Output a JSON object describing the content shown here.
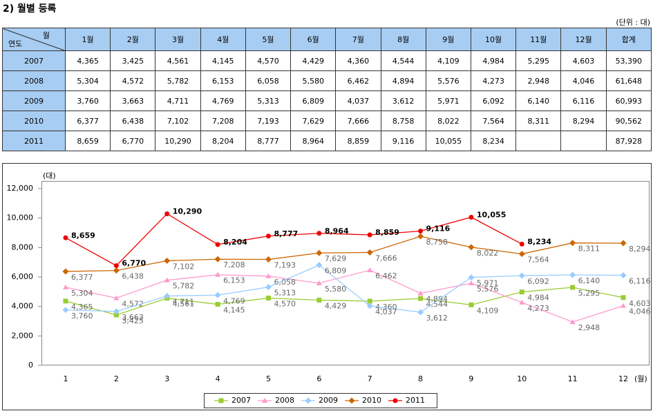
{
  "header": {
    "title": "2) 월별 등록",
    "unit": "(단위 : 대)"
  },
  "table": {
    "corner_top": "월",
    "corner_bottom": "연도",
    "columns": [
      "1월",
      "2월",
      "3월",
      "4월",
      "5월",
      "6월",
      "7월",
      "8월",
      "9월",
      "10월",
      "11월",
      "12월",
      "합계"
    ],
    "rows": [
      {
        "year": "2007",
        "cells": [
          "4,365",
          "3,425",
          "4,561",
          "4,145",
          "4,570",
          "4,429",
          "4,360",
          "4,544",
          "4,109",
          "4,984",
          "5,295",
          "4,603",
          "53,390"
        ]
      },
      {
        "year": "2008",
        "cells": [
          "5,304",
          "4,572",
          "5,782",
          "6,153",
          "6,058",
          "5,580",
          "6,462",
          "4,894",
          "5,576",
          "4,273",
          "2,948",
          "4,046",
          "61,648"
        ]
      },
      {
        "year": "2009",
        "cells": [
          "3,760",
          "3,663",
          "4,711",
          "4,769",
          "5,313",
          "6,809",
          "4,037",
          "3,612",
          "5,971",
          "6,092",
          "6,140",
          "6,116",
          "60,993"
        ]
      },
      {
        "year": "2010",
        "cells": [
          "6,377",
          "6,438",
          "7,102",
          "7,208",
          "7,193",
          "7,629",
          "7,666",
          "8,758",
          "8,022",
          "7,564",
          "8,311",
          "8,294",
          "90,562"
        ]
      },
      {
        "year": "2011",
        "cells": [
          "8,659",
          "6,770",
          "10,290",
          "8,204",
          "8,777",
          "8,964",
          "8,859",
          "9,116",
          "10,055",
          "8,234",
          null,
          null,
          "87,928"
        ]
      }
    ]
  },
  "chart_data": {
    "type": "line",
    "y_label": "(대)",
    "x_label": "(월)",
    "categories": [
      "1",
      "2",
      "3",
      "4",
      "5",
      "6",
      "7",
      "8",
      "9",
      "10",
      "11",
      "12"
    ],
    "ylim": [
      0,
      12000
    ],
    "yticks": [
      0,
      {
        "value": 2000,
        "label": "2,000"
      },
      {
        "value": 4000,
        "label": "4,000"
      },
      {
        "value": 6000,
        "label": "6,000"
      },
      {
        "value": 8000,
        "label": "8,000"
      },
      {
        "value": 10000,
        "label": "10,000"
      },
      {
        "value": 12000,
        "label": "12,000"
      }
    ],
    "legend": "bottom",
    "series": [
      {
        "name": "2007",
        "color": "#99cc33",
        "marker": "square",
        "values": [
          4365,
          3425,
          4561,
          4145,
          4570,
          4429,
          4360,
          4544,
          4109,
          4984,
          5295,
          4603
        ],
        "value_labels": [
          "4,365",
          "3,425",
          "4,561",
          "4,145",
          "4,570",
          "4,429",
          "4,360",
          "4,544",
          "4,109",
          "4,984",
          "5,295",
          "4,603"
        ]
      },
      {
        "name": "2008",
        "color": "#ff99cc",
        "marker": "triangle",
        "values": [
          5304,
          4572,
          5782,
          6153,
          6058,
          5580,
          6462,
          4894,
          5576,
          4273,
          2948,
          4046
        ],
        "value_labels": [
          "5,304",
          "4,572",
          "5,782",
          "6,153",
          "6,058",
          "5,580",
          "6,462",
          "4,894",
          "5,576",
          "4,273",
          "2,948",
          "4,046"
        ]
      },
      {
        "name": "2009",
        "color": "#99ccff",
        "marker": "diamond",
        "values": [
          3760,
          3663,
          4711,
          4769,
          5313,
          6809,
          4037,
          3612,
          5971,
          6092,
          6140,
          6116
        ],
        "value_labels": [
          "3,760",
          "3,663",
          "4,711",
          "4,769",
          "5,313",
          "6,809",
          "4,037",
          "3,612",
          "5,971",
          "6,092",
          "6,140",
          "6,116"
        ]
      },
      {
        "name": "2010",
        "color": "#cc6600",
        "marker": "diamond",
        "values": [
          6377,
          6438,
          7102,
          7208,
          7193,
          7629,
          7666,
          8758,
          8022,
          7564,
          8311,
          8294
        ],
        "value_labels": [
          "6,377",
          "6,438",
          "7,102",
          "7,208",
          "7,193",
          "7,629",
          "7,666",
          "8,758",
          "8,022",
          "7,564",
          "8,311",
          "8,294"
        ]
      },
      {
        "name": "2011",
        "color": "#ee0000",
        "marker": "circle",
        "values": [
          8659,
          6770,
          10290,
          8204,
          8777,
          8964,
          8859,
          9116,
          10055,
          8234,
          null,
          null
        ],
        "value_labels": [
          "8,659",
          "6,770",
          "10,290",
          "8,204",
          "8,777",
          "8,964",
          "8,859",
          "9,116",
          "10,055",
          "8,234",
          null,
          null
        ]
      }
    ]
  }
}
